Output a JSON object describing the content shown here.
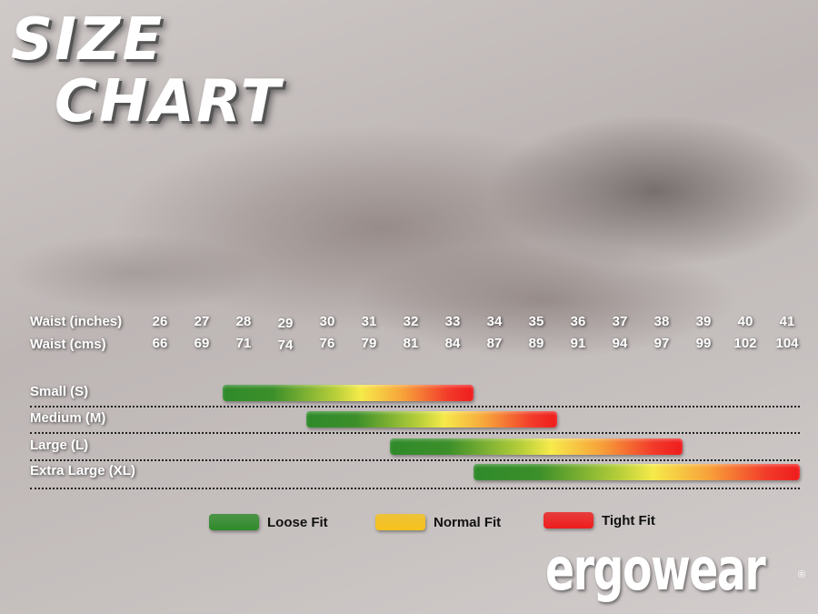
{
  "title": {
    "line1": "SIZE",
    "line2": "CHART"
  },
  "chart_data": {
    "type": "range-bar",
    "row_headers": [
      "Waist (inches)",
      "Waist (cms)"
    ],
    "inches": [
      26,
      27,
      28,
      29,
      30,
      31,
      32,
      33,
      34,
      35,
      36,
      37,
      38,
      39,
      40,
      41
    ],
    "cms": [
      66,
      69,
      71,
      74,
      76,
      79,
      81,
      84,
      87,
      89,
      91,
      94,
      97,
      99,
      102,
      104
    ],
    "sizes": [
      {
        "label": "Small (S)",
        "from": 27.5,
        "to": 33.5
      },
      {
        "label": "Medium (M)",
        "from": 29.5,
        "to": 35.5
      },
      {
        "label": "Large (L)",
        "from": 31.5,
        "to": 38.5
      },
      {
        "label": "Extra Large (XL)",
        "from": 33.5,
        "to": 41.5
      }
    ],
    "legend": [
      {
        "label": "Loose Fit",
        "color": "#2f8a2a"
      },
      {
        "label": "Normal Fit",
        "color": "#f7c21a"
      },
      {
        "label": "Tight Fit",
        "color": "#ee1c1c"
      }
    ]
  },
  "brand": {
    "logo": "ergowear",
    "registered": "®"
  }
}
